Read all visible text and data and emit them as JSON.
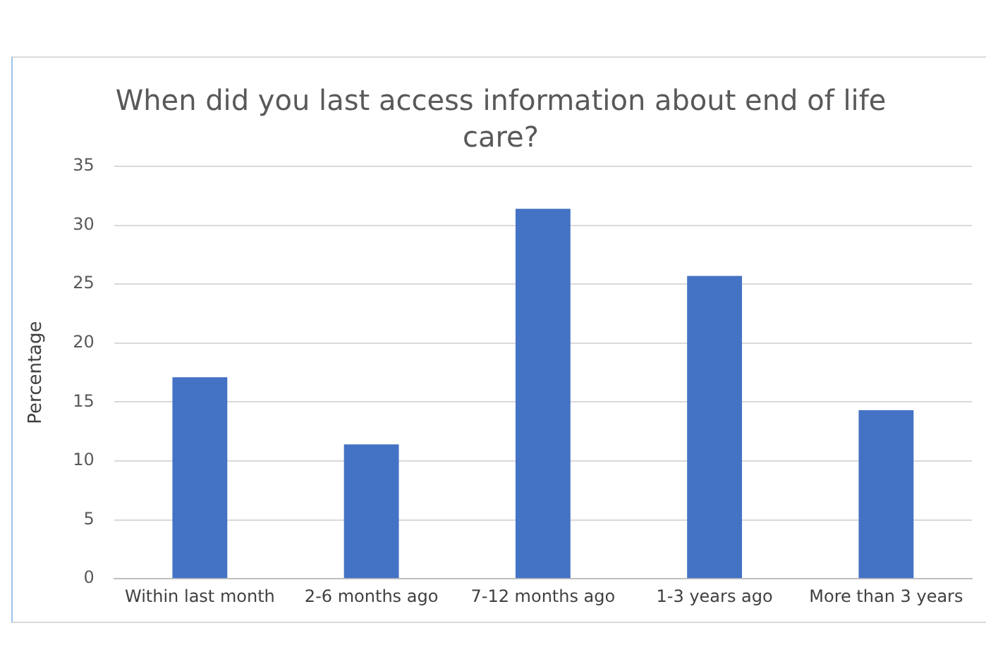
{
  "chart_data": {
    "type": "bar",
    "title": "When did you last access information about end of life care?",
    "ylabel": "Percentage",
    "categories": [
      "Within last month",
      "2-6 months ago",
      "7-12 months ago",
      "1-3 years ago",
      "More than 3 years"
    ],
    "values": [
      17.1,
      11.4,
      31.4,
      25.7,
      14.3
    ],
    "color": "#4472c4",
    "ylim": [
      0,
      35
    ],
    "yticks": [
      0,
      5,
      10,
      15,
      20,
      25,
      30,
      35
    ],
    "grid": "y"
  }
}
